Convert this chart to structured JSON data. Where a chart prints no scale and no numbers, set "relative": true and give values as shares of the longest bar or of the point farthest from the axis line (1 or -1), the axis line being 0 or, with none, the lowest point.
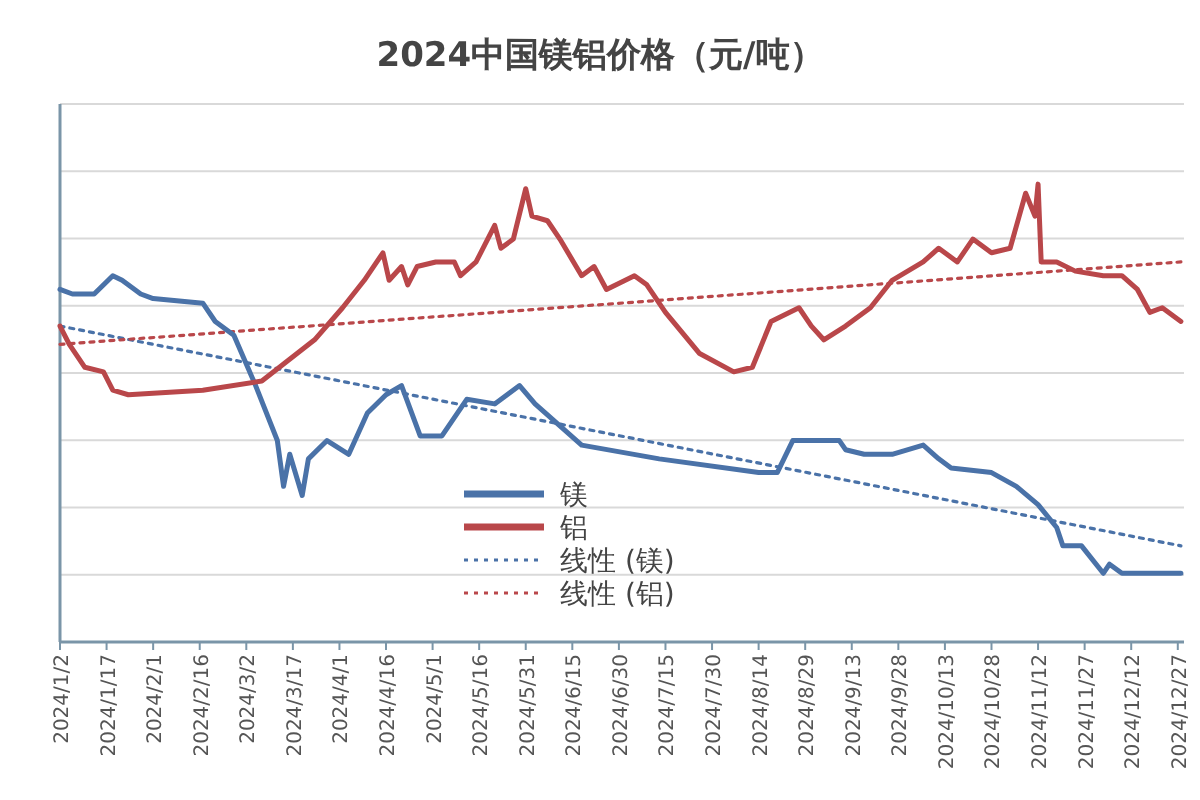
{
  "chart_data": {
    "type": "line",
    "title": "2024中国镁铝价格（元/吨）",
    "relative": true,
    "grid": "y",
    "legend": "bottom",
    "marker": "none",
    "xlim": [
      "2024-01-02",
      "2024-12-29"
    ],
    "xticks": [
      {
        "value": "2024-01-02",
        "label": "2024/1/2"
      },
      {
        "value": "2024-01-17",
        "label": "2024/1/17"
      },
      {
        "value": "2024-02-01",
        "label": "2024/2/1"
      },
      {
        "value": "2024-02-16",
        "label": "2024/2/16"
      },
      {
        "value": "2024-03-02",
        "label": "2024/3/2"
      },
      {
        "value": "2024-03-17",
        "label": "2024/3/17"
      },
      {
        "value": "2024-04-01",
        "label": "2024/4/1"
      },
      {
        "value": "2024-04-16",
        "label": "2024/4/16"
      },
      {
        "value": "2024-05-01",
        "label": "2024/5/1"
      },
      {
        "value": "2024-05-16",
        "label": "2024/5/16"
      },
      {
        "value": "2024-05-31",
        "label": "2024/5/31"
      },
      {
        "value": "2024-06-15",
        "label": "2024/6/15"
      },
      {
        "value": "2024-06-30",
        "label": "2024/6/30"
      },
      {
        "value": "2024-07-15",
        "label": "2024/7/15"
      },
      {
        "value": "2024-07-30",
        "label": "2024/7/30"
      },
      {
        "value": "2024-08-14",
        "label": "2024/8/14"
      },
      {
        "value": "2024-08-29",
        "label": "2024/8/29"
      },
      {
        "value": "2024-09-13",
        "label": "2024/9/13"
      },
      {
        "value": "2024-09-28",
        "label": "2024/9/28"
      },
      {
        "value": "2024-10-13",
        "label": "2024/10/13"
      },
      {
        "value": "2024-10-28",
        "label": "2024/10/28"
      },
      {
        "value": "2024-11-12",
        "label": "2024/11/12"
      },
      {
        "value": "2024-11-27",
        "label": "2024/11/27"
      },
      {
        "value": "2024-12-12",
        "label": "2024/12/12"
      },
      {
        "value": "2024-12-27",
        "label": "2024/12/27"
      }
    ],
    "series": [
      {
        "name": "镁",
        "color": "#4a72a8",
        "line_style": "solid",
        "x": [
          "2024-01-02",
          "2024-01-06",
          "2024-01-13",
          "2024-01-19",
          "2024-01-22",
          "2024-01-28",
          "2024-02-01",
          "2024-02-17",
          "2024-02-21",
          "2024-02-27",
          "2024-03-05",
          "2024-03-12",
          "2024-03-14",
          "2024-03-16",
          "2024-03-20",
          "2024-03-22",
          "2024-03-28",
          "2024-04-04",
          "2024-04-10",
          "2024-04-16",
          "2024-04-21",
          "2024-04-27",
          "2024-05-04",
          "2024-05-12",
          "2024-05-21",
          "2024-05-29",
          "2024-06-03",
          "2024-06-18",
          "2024-07-13",
          "2024-08-14",
          "2024-08-20",
          "2024-08-25",
          "2024-09-09",
          "2024-09-11",
          "2024-09-17",
          "2024-09-26",
          "2024-10-06",
          "2024-10-11",
          "2024-10-15",
          "2024-10-28",
          "2024-11-05",
          "2024-11-12",
          "2024-11-18",
          "2024-11-20",
          "2024-11-26",
          "2024-12-03",
          "2024-12-05",
          "2024-12-09",
          "2024-12-28"
        ],
        "values": [
          0.77,
          0.76,
          0.76,
          0.8,
          0.79,
          0.76,
          0.75,
          0.74,
          0.7,
          0.67,
          0.56,
          0.44,
          0.34,
          0.41,
          0.32,
          0.4,
          0.44,
          0.41,
          0.5,
          0.54,
          0.56,
          0.45,
          0.45,
          0.53,
          0.52,
          0.56,
          0.52,
          0.43,
          0.4,
          0.37,
          0.37,
          0.44,
          0.44,
          0.42,
          0.41,
          0.41,
          0.43,
          0.4,
          0.38,
          0.37,
          0.34,
          0.3,
          0.25,
          0.21,
          0.21,
          0.15,
          0.17,
          0.15,
          0.15
        ]
      },
      {
        "name": "铝",
        "color": "#b9474a",
        "line_style": "solid",
        "x": [
          "2024-01-02",
          "2024-01-05",
          "2024-01-10",
          "2024-01-16",
          "2024-01-19",
          "2024-01-24",
          "2024-02-17",
          "2024-03-07",
          "2024-03-24",
          "2024-04-02",
          "2024-04-09",
          "2024-04-15",
          "2024-04-17",
          "2024-04-21",
          "2024-04-23",
          "2024-04-26",
          "2024-05-02",
          "2024-05-08",
          "2024-05-10",
          "2024-05-15",
          "2024-05-21",
          "2024-05-23",
          "2024-05-27",
          "2024-05-31",
          "2024-06-02",
          "2024-06-07",
          "2024-06-11",
          "2024-06-18",
          "2024-06-22",
          "2024-06-26",
          "2024-07-05",
          "2024-07-09",
          "2024-07-15",
          "2024-07-26",
          "2024-08-06",
          "2024-08-12",
          "2024-08-18",
          "2024-08-27",
          "2024-08-31",
          "2024-09-04",
          "2024-09-11",
          "2024-09-19",
          "2024-09-26",
          "2024-10-06",
          "2024-10-11",
          "2024-10-17",
          "2024-10-22",
          "2024-10-28",
          "2024-11-03",
          "2024-11-08",
          "2024-11-11",
          "2024-11-12",
          "2024-11-13",
          "2024-11-18",
          "2024-11-24",
          "2024-12-03",
          "2024-12-09",
          "2024-12-14",
          "2024-12-18",
          "2024-12-22",
          "2024-12-28"
        ],
        "values": [
          0.69,
          0.65,
          0.6,
          0.59,
          0.55,
          0.54,
          0.55,
          0.57,
          0.66,
          0.73,
          0.79,
          0.85,
          0.79,
          0.82,
          0.78,
          0.82,
          0.83,
          0.83,
          0.8,
          0.83,
          0.91,
          0.86,
          0.88,
          0.99,
          0.93,
          0.92,
          0.88,
          0.8,
          0.82,
          0.77,
          0.8,
          0.78,
          0.72,
          0.63,
          0.59,
          0.6,
          0.7,
          0.73,
          0.69,
          0.66,
          0.69,
          0.73,
          0.79,
          0.83,
          0.86,
          0.83,
          0.88,
          0.85,
          0.86,
          0.98,
          0.93,
          1,
          0.83,
          0.83,
          0.81,
          0.8,
          0.8,
          0.77,
          0.72,
          0.73,
          0.7
        ]
      },
      {
        "name": "线性 (镁)",
        "color": "#4a72a8",
        "line_style": "dotted",
        "x": [
          "2024-01-02",
          "2024-12-28"
        ],
        "values": [
          0.69,
          0.21
        ]
      },
      {
        "name": "线性 (铝)",
        "color": "#b9474a",
        "line_style": "dotted",
        "x": [
          "2024-01-02",
          "2024-12-28"
        ],
        "values": [
          0.65,
          0.83
        ]
      }
    ]
  }
}
